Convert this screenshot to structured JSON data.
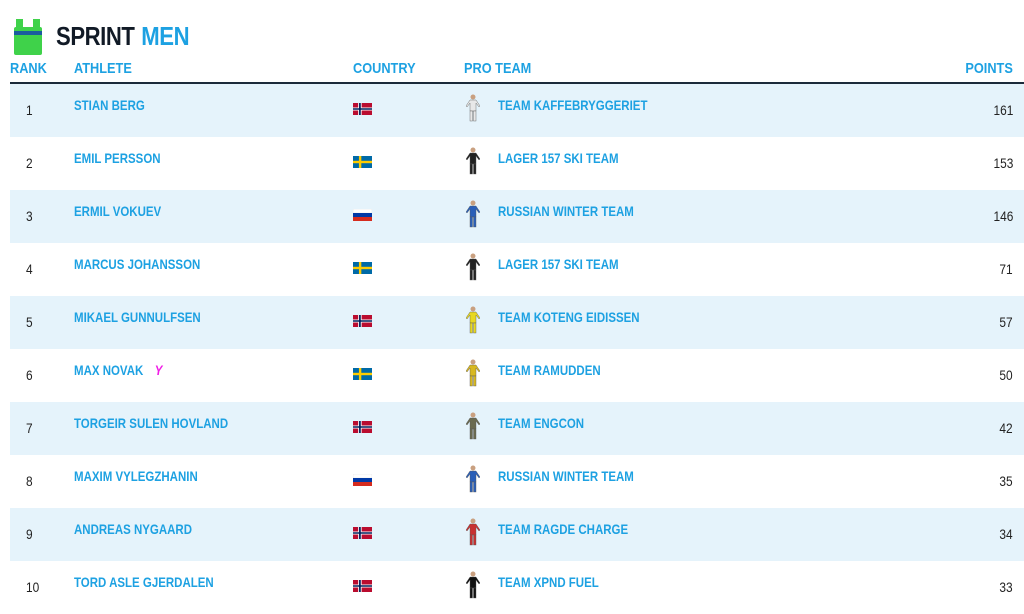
{
  "header": {
    "title_a": "SPRINT",
    "title_b": "MEN",
    "icon": "sprint-jersey-icon"
  },
  "columns": {
    "rank": "RANK",
    "athlete": "ATHLETE",
    "country": "COUNTRY",
    "team": "PRO TEAM",
    "points": "POINTS"
  },
  "colors": {
    "accent": "#1da1e2",
    "row_alt": "#e5f3fb",
    "young_badge": "#f01ee6"
  },
  "rows": [
    {
      "rank": "1",
      "athlete": "STIAN BERG",
      "country": "NOR",
      "team": "TEAM KAFFEBRYGGERIET",
      "kit": "#e8e8e8",
      "points": "161"
    },
    {
      "rank": "2",
      "athlete": "EMIL PERSSON",
      "country": "SWE",
      "team": "LAGER 157 SKI TEAM",
      "kit": "#222222",
      "points": "153"
    },
    {
      "rank": "3",
      "athlete": "ERMIL VOKUEV",
      "country": "RUS",
      "team": "RUSSIAN WINTER TEAM",
      "kit": "#2a5fb8",
      "points": "146"
    },
    {
      "rank": "4",
      "athlete": "MARCUS JOHANSSON",
      "country": "SWE",
      "team": "LAGER 157 SKI TEAM",
      "kit": "#222222",
      "points": "71"
    },
    {
      "rank": "5",
      "athlete": "MIKAEL GUNNULFSEN",
      "country": "NOR",
      "team": "TEAM KOTENG EIDISSEN",
      "kit": "#e8d820",
      "points": "57"
    },
    {
      "rank": "6",
      "athlete": "MAX NOVAK",
      "badge": "Y",
      "country": "SWE",
      "team": "TEAM RAMUDDEN",
      "kit": "#d8b820",
      "points": "50"
    },
    {
      "rank": "7",
      "athlete": "TORGEIR SULEN HOVLAND",
      "country": "NOR",
      "team": "TEAM ENGCON",
      "kit": "#6a6a50",
      "points": "42"
    },
    {
      "rank": "8",
      "athlete": "MAXIM VYLEGZHANIN",
      "country": "RUS",
      "team": "RUSSIAN WINTER TEAM",
      "kit": "#2a5fb8",
      "points": "35"
    },
    {
      "rank": "9",
      "athlete": "ANDREAS NYGAARD",
      "country": "NOR",
      "team": "TEAM RAGDE CHARGE",
      "kit": "#c83030",
      "points": "34"
    },
    {
      "rank": "10",
      "athlete": "TORD ASLE GJERDALEN",
      "country": "NOR",
      "team": "TEAM XPND FUEL",
      "kit": "#111111",
      "points": "33"
    }
  ]
}
